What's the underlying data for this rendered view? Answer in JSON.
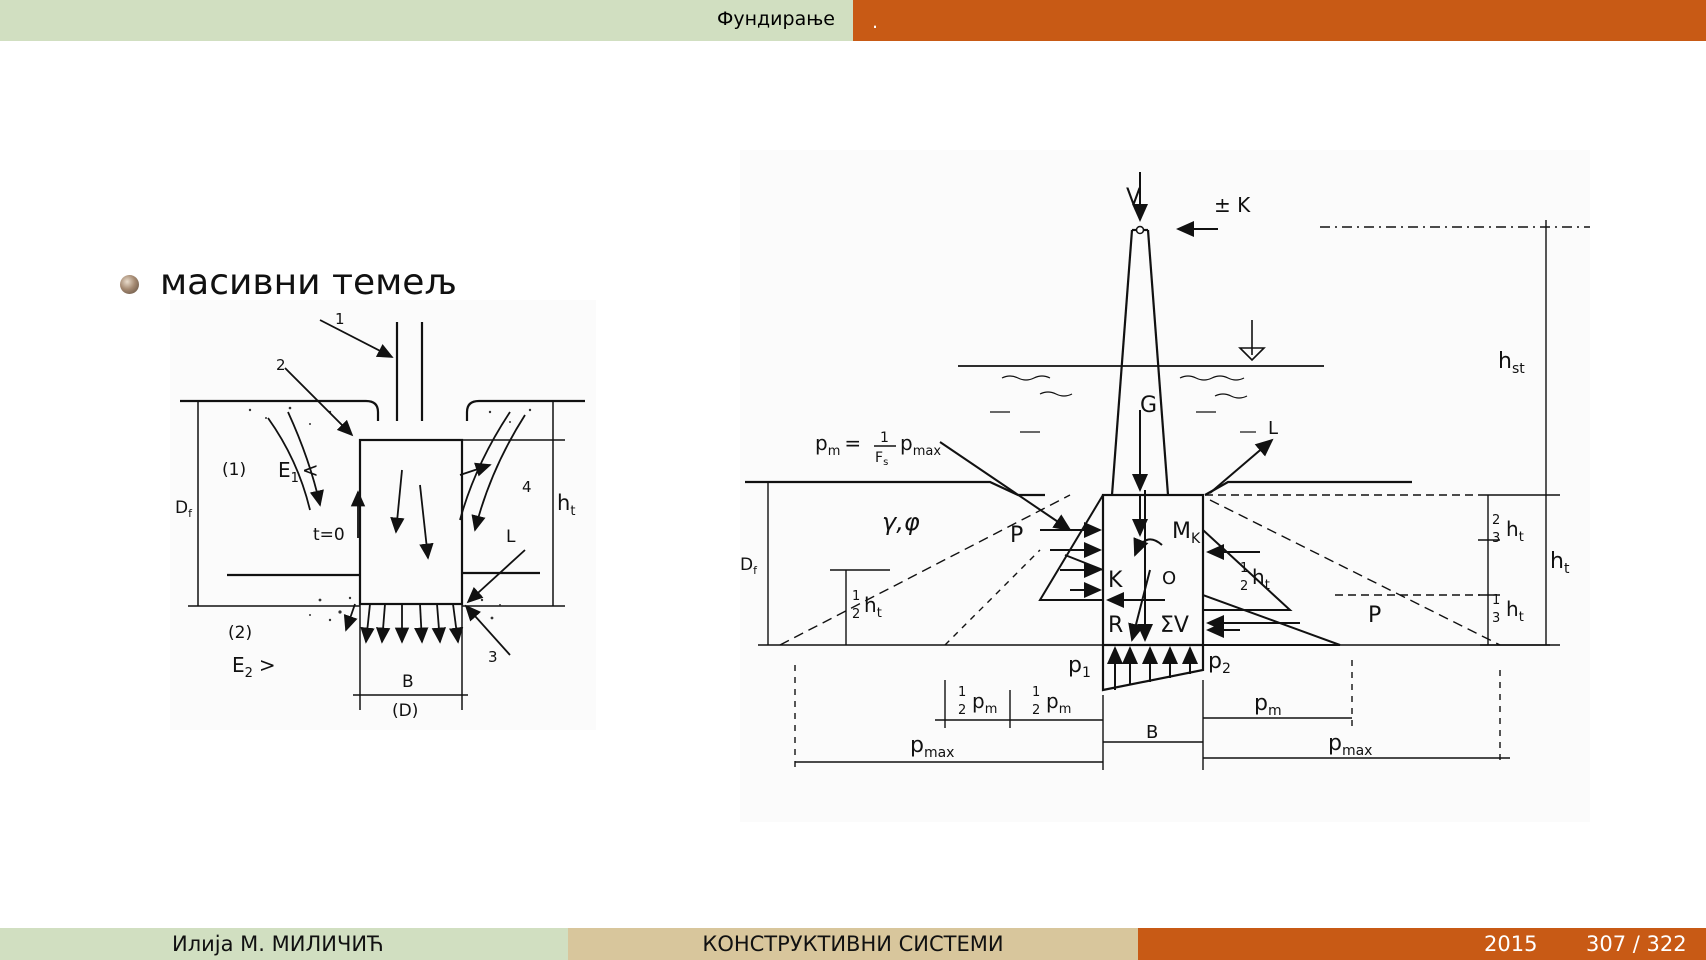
{
  "header": {
    "section": "Фундирање",
    "subsection": "."
  },
  "content": {
    "bullet": "масивни темељ"
  },
  "figure_left": {
    "labels": {
      "one": "1",
      "two": "2",
      "three": "3",
      "four": "4",
      "zone1": "(1)",
      "zone2": "(2)",
      "e1": "E",
      "e1_sub": "1",
      "e1_sym": "<",
      "e2": "E",
      "e2_sub": "2",
      "e2_sym": ">",
      "t0": "t=0",
      "df": "D",
      "df_sub": "f",
      "ht": "h",
      "ht_sub": "t",
      "l": "L",
      "b": "B",
      "d": "(D)"
    }
  },
  "figure_right": {
    "labels": {
      "v": "V",
      "k_load": "± K",
      "hst": "h",
      "hst_sub": "st",
      "g": "G",
      "l": "L",
      "pm_eq": "p",
      "pm_eq_sub": "m",
      "pm_eq_rest": "= ",
      "frac_one": "1",
      "frac_fs": "F",
      "frac_fs_sub": "s",
      "pmax_word": "p",
      "pmax_sub": "max",
      "gamma_phi": "γ,φ",
      "p_left": "P",
      "p_right": "P",
      "mk": "M",
      "mk_sub": "K",
      "k_mid": "K",
      "o": "O",
      "r": "R",
      "sum_v": "ΣV",
      "df": "D",
      "df_sub": "f",
      "half": "1",
      "half_den": "2",
      "ht_h": "h",
      "ht_t": "t",
      "two": "2",
      "three": "3",
      "ht_right": "h",
      "ht_right_sub": "t",
      "p1": "p",
      "p1_sub": "1",
      "p2": "p",
      "p2_sub": "2",
      "pm_h": "p",
      "pm_m": "m",
      "b": "B",
      "pmax_left": "p",
      "pmax_left_sub": "max",
      "pmax_right": "p",
      "pmax_right_sub": "max"
    }
  },
  "footer": {
    "author": "Илија М. МИЛИЧИЋ",
    "title": "КОНСТРУКТИВНИ СИСТЕМИ",
    "year": "2015",
    "page": "307 / 322"
  }
}
